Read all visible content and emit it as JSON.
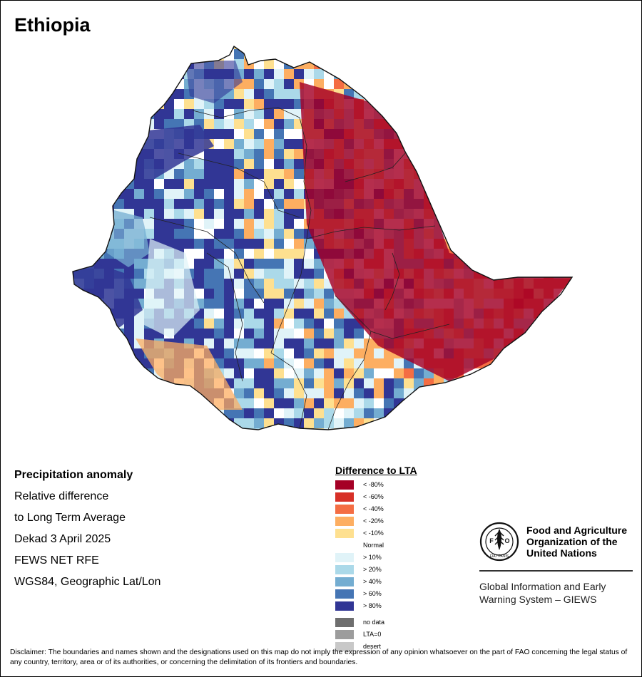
{
  "map": {
    "title": "Ethiopia"
  },
  "info": {
    "heading": "Precipitation anomaly",
    "line1": "Relative difference",
    "line2": "to Long Term Average",
    "line3": "Dekad 3 April 2025",
    "line4": "FEWS NET RFE",
    "line5": "WGS84, Geographic Lat/Lon"
  },
  "legend": {
    "title": "Difference to LTA",
    "items": [
      {
        "label": "< -80%",
        "color": "#a50026"
      },
      {
        "label": "< -60%",
        "color": "#d73027"
      },
      {
        "label": "< -40%",
        "color": "#f46d43"
      },
      {
        "label": "< -20%",
        "color": "#fdae61"
      },
      {
        "label": "< -10%",
        "color": "#fee090"
      },
      {
        "label": "Normal",
        "color": "#ffffff"
      },
      {
        "label": "> 10%",
        "color": "#e0f3f8"
      },
      {
        "label": "> 20%",
        "color": "#abd9e9"
      },
      {
        "label": "> 40%",
        "color": "#74add1"
      },
      {
        "label": "> 60%",
        "color": "#4575b4"
      },
      {
        "label": "> 80%",
        "color": "#313695"
      }
    ],
    "extra": [
      {
        "label": "no data",
        "color": "#6e6e6e"
      },
      {
        "label": "LTA=0",
        "color": "#9c9c9c"
      },
      {
        "label": "desert",
        "color": "#c8c8c8"
      }
    ]
  },
  "organization": {
    "logo_text": "FAO",
    "logo_motto": "FIAT PANIS",
    "name": "Food and Agriculture Organization of the United Nations",
    "program": "Global Information and Early Warning System – GIEWS"
  },
  "disclaimer": "Disclaimer: The boundaries and names shown and the designations used on this map do not imply the expression of any opinion whatsoever on the part of FAO concerning the legal status of any country, territory, area or of its authorities, or concerning the delimitation of its frontiers and boundaries."
}
